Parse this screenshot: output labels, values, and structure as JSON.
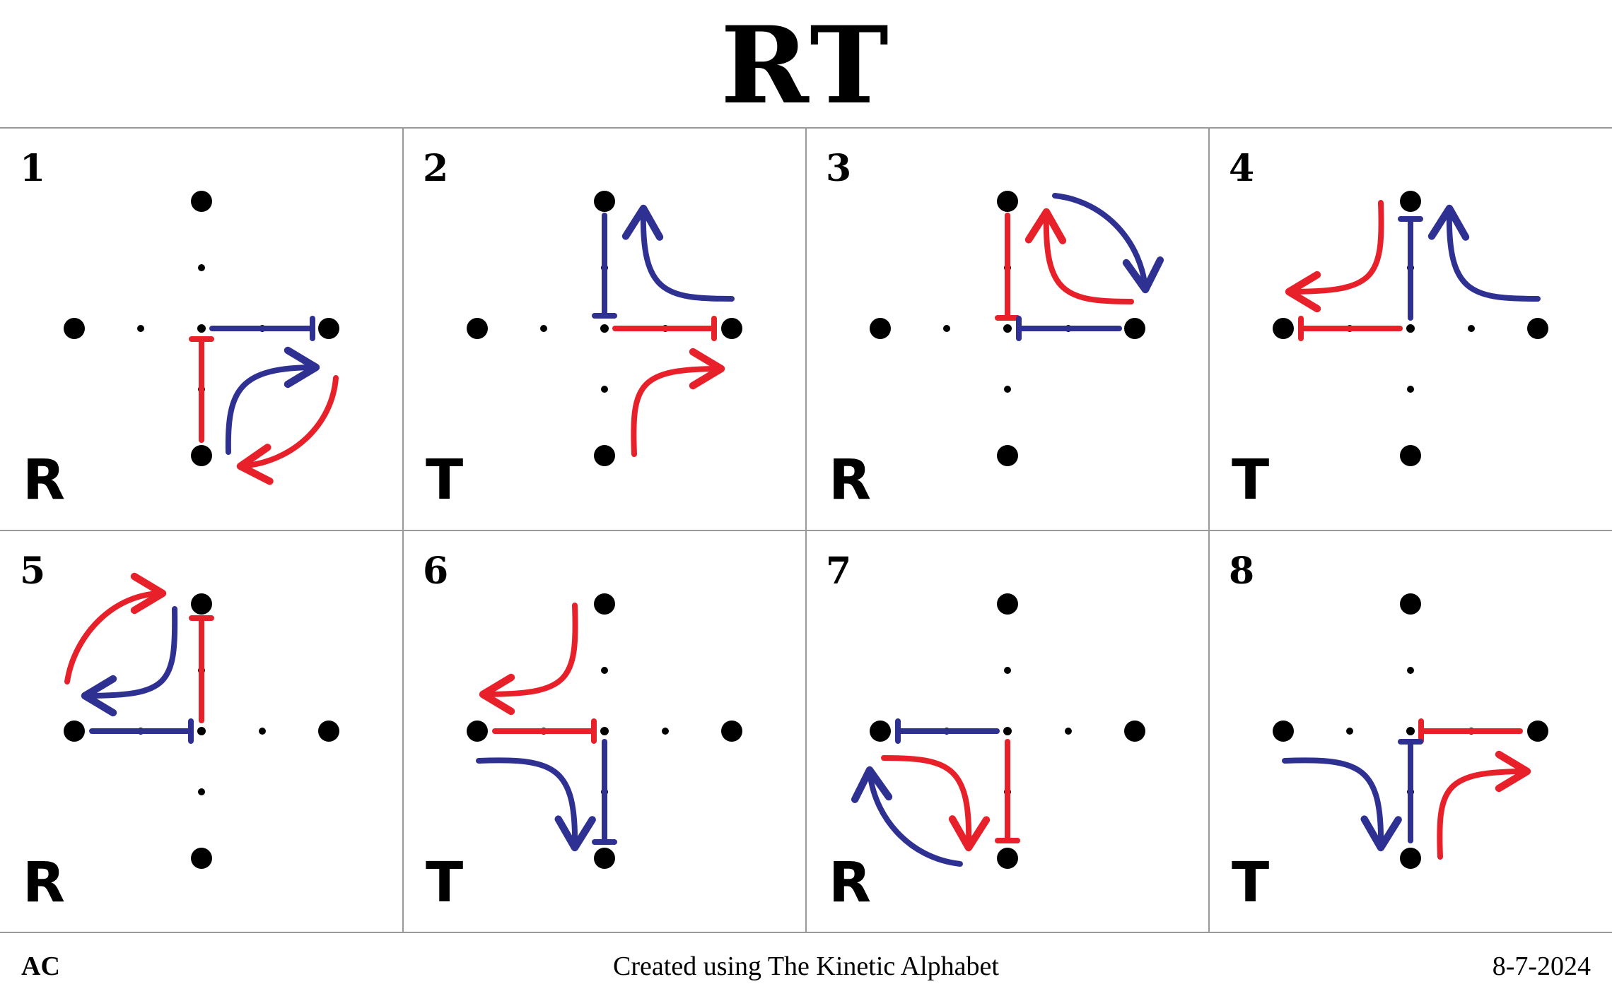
{
  "title": "RT",
  "footer": {
    "left": "AC",
    "center": "Created using The Kinetic Alphabet",
    "right": "8-7-2024"
  },
  "colors": {
    "red": "#e8202a",
    "blue": "#2e3192",
    "grid": "#9a9a9a",
    "dot": "#000000"
  },
  "cells": [
    {
      "number": "1",
      "letter": "R"
    },
    {
      "number": "2",
      "letter": "T"
    },
    {
      "number": "3",
      "letter": "R"
    },
    {
      "number": "4",
      "letter": "T"
    },
    {
      "number": "5",
      "letter": "R"
    },
    {
      "number": "6",
      "letter": "T"
    },
    {
      "number": "7",
      "letter": "R"
    },
    {
      "number": "8",
      "letter": "T"
    }
  ]
}
